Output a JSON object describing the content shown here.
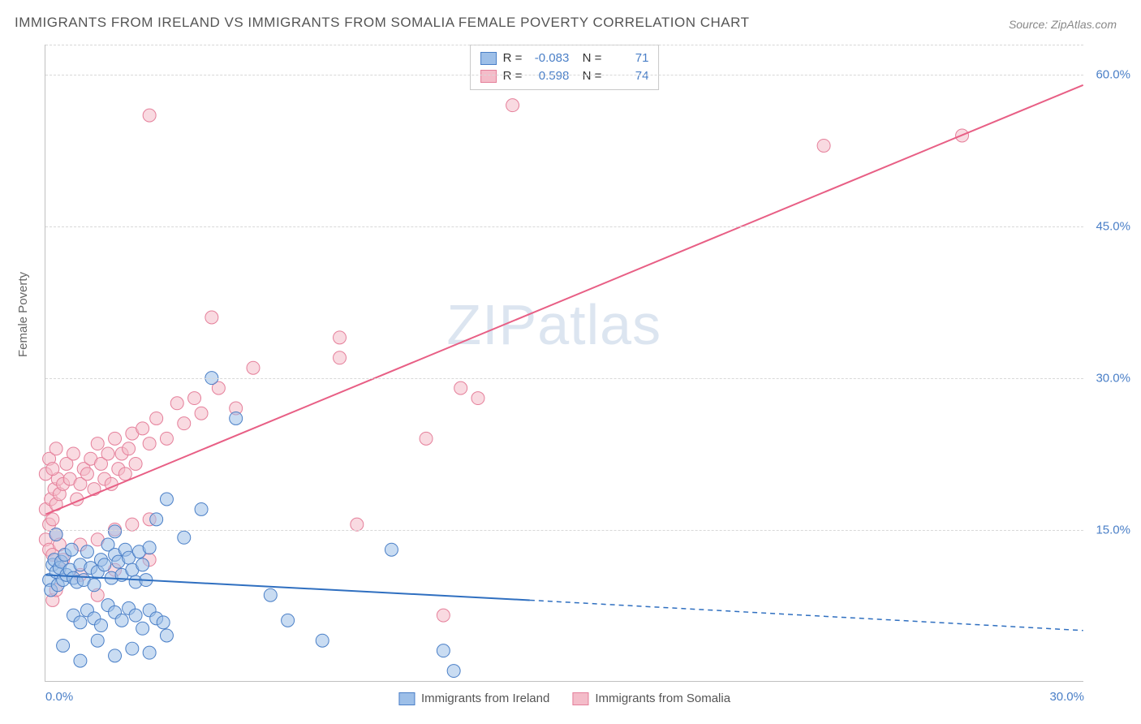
{
  "title": "IMMIGRANTS FROM IRELAND VS IMMIGRANTS FROM SOMALIA FEMALE POVERTY CORRELATION CHART",
  "source": "Source: ZipAtlas.com",
  "y_axis_label": "Female Poverty",
  "watermark": {
    "part1": "ZIP",
    "part2": "atlas"
  },
  "chart": {
    "type": "scatter-with-regression",
    "background_color": "#ffffff",
    "grid_color": "#d8d8d8",
    "axis_color": "#c0c0c0",
    "text_color": "#666666",
    "value_color": "#4a7fc7",
    "xlim": [
      0,
      30
    ],
    "ylim": [
      0,
      63
    ],
    "y_ticks": [
      15,
      30,
      45,
      60
    ],
    "y_tick_labels": [
      "15.0%",
      "30.0%",
      "45.0%",
      "60.0%"
    ],
    "x_ticks": [
      0,
      30
    ],
    "x_tick_labels": [
      "0.0%",
      "30.0%"
    ],
    "marker_radius": 8,
    "marker_opacity": 0.55,
    "line_width": 2
  },
  "series": [
    {
      "name": "Immigrants from Ireland",
      "fill_color": "#9dbfe8",
      "stroke_color": "#4a7fc7",
      "line_color": "#2f6fc0",
      "R": "-0.083",
      "N": "71",
      "regression": {
        "x1": 0,
        "y1": 10.5,
        "x2": 14,
        "y2": 8.0,
        "extend_x2": 30,
        "extend_y2": 5.0
      },
      "points": [
        [
          0.1,
          10.0
        ],
        [
          0.2,
          11.5
        ],
        [
          0.15,
          9.0
        ],
        [
          0.3,
          10.8
        ],
        [
          0.25,
          12.0
        ],
        [
          0.4,
          11.2
        ],
        [
          0.35,
          9.5
        ],
        [
          0.5,
          10.0
        ],
        [
          0.45,
          11.8
        ],
        [
          0.6,
          10.5
        ],
        [
          0.55,
          12.5
        ],
        [
          0.7,
          11.0
        ],
        [
          0.8,
          10.2
        ],
        [
          0.75,
          13.0
        ],
        [
          0.9,
          9.8
        ],
        [
          1.0,
          11.5
        ],
        [
          1.1,
          10.0
        ],
        [
          1.2,
          12.8
        ],
        [
          1.3,
          11.2
        ],
        [
          1.4,
          9.5
        ],
        [
          1.5,
          10.8
        ],
        [
          1.6,
          12.0
        ],
        [
          1.7,
          11.5
        ],
        [
          1.8,
          13.5
        ],
        [
          1.9,
          10.2
        ],
        [
          2.0,
          12.5
        ],
        [
          2.1,
          11.8
        ],
        [
          2.2,
          10.5
        ],
        [
          2.3,
          13.0
        ],
        [
          2.4,
          12.2
        ],
        [
          2.5,
          11.0
        ],
        [
          2.6,
          9.8
        ],
        [
          2.7,
          12.8
        ],
        [
          2.8,
          11.5
        ],
        [
          2.9,
          10.0
        ],
        [
          3.0,
          13.2
        ],
        [
          0.8,
          6.5
        ],
        [
          1.0,
          5.8
        ],
        [
          1.2,
          7.0
        ],
        [
          1.4,
          6.2
        ],
        [
          1.6,
          5.5
        ],
        [
          1.8,
          7.5
        ],
        [
          2.0,
          6.8
        ],
        [
          2.2,
          6.0
        ],
        [
          2.4,
          7.2
        ],
        [
          2.6,
          6.5
        ],
        [
          2.8,
          5.2
        ],
        [
          3.0,
          7.0
        ],
        [
          3.2,
          6.2
        ],
        [
          3.4,
          5.8
        ],
        [
          0.5,
          3.5
        ],
        [
          1.5,
          4.0
        ],
        [
          2.5,
          3.2
        ],
        [
          3.5,
          4.5
        ],
        [
          1.0,
          2.0
        ],
        [
          2.0,
          2.5
        ],
        [
          3.0,
          2.8
        ],
        [
          0.3,
          14.5
        ],
        [
          3.2,
          16.0
        ],
        [
          4.0,
          14.2
        ],
        [
          4.5,
          17.0
        ],
        [
          3.5,
          18.0
        ],
        [
          2.0,
          14.8
        ],
        [
          4.8,
          30.0
        ],
        [
          5.5,
          26.0
        ],
        [
          6.5,
          8.5
        ],
        [
          7.0,
          6.0
        ],
        [
          8.0,
          4.0
        ],
        [
          10.0,
          13.0
        ],
        [
          11.5,
          3.0
        ],
        [
          11.8,
          1.0
        ]
      ]
    },
    {
      "name": "Immigrants from Somalia",
      "fill_color": "#f4bcc9",
      "stroke_color": "#e57f9a",
      "line_color": "#e85f85",
      "R": "0.598",
      "N": "74",
      "regression": {
        "x1": 0,
        "y1": 16.5,
        "x2": 30,
        "y2": 59.0
      },
      "points": [
        [
          0.0,
          17.0
        ],
        [
          0.1,
          15.5
        ],
        [
          0.15,
          18.0
        ],
        [
          0.2,
          16.0
        ],
        [
          0.25,
          19.0
        ],
        [
          0.3,
          17.5
        ],
        [
          0.35,
          20.0
        ],
        [
          0.4,
          18.5
        ],
        [
          0.0,
          14.0
        ],
        [
          0.1,
          13.0
        ],
        [
          0.2,
          12.5
        ],
        [
          0.3,
          14.5
        ],
        [
          0.4,
          13.5
        ],
        [
          0.0,
          20.5
        ],
        [
          0.1,
          22.0
        ],
        [
          0.2,
          21.0
        ],
        [
          0.3,
          23.0
        ],
        [
          0.5,
          19.5
        ],
        [
          0.6,
          21.5
        ],
        [
          0.7,
          20.0
        ],
        [
          0.8,
          22.5
        ],
        [
          0.9,
          18.0
        ],
        [
          1.0,
          19.5
        ],
        [
          1.1,
          21.0
        ],
        [
          1.2,
          20.5
        ],
        [
          1.3,
          22.0
        ],
        [
          1.4,
          19.0
        ],
        [
          1.5,
          23.5
        ],
        [
          1.6,
          21.5
        ],
        [
          1.7,
          20.0
        ],
        [
          1.8,
          22.5
        ],
        [
          1.9,
          19.5
        ],
        [
          2.0,
          24.0
        ],
        [
          2.1,
          21.0
        ],
        [
          2.2,
          22.5
        ],
        [
          2.3,
          20.5
        ],
        [
          2.4,
          23.0
        ],
        [
          2.5,
          24.5
        ],
        [
          2.6,
          21.5
        ],
        [
          2.8,
          25.0
        ],
        [
          3.0,
          23.5
        ],
        [
          3.2,
          26.0
        ],
        [
          3.5,
          24.0
        ],
        [
          3.8,
          27.5
        ],
        [
          4.0,
          25.5
        ],
        [
          4.3,
          28.0
        ],
        [
          4.5,
          26.5
        ],
        [
          5.0,
          29.0
        ],
        [
          0.5,
          12.0
        ],
        [
          1.0,
          13.5
        ],
        [
          1.5,
          14.0
        ],
        [
          2.0,
          15.0
        ],
        [
          2.5,
          15.5
        ],
        [
          3.0,
          16.0
        ],
        [
          1.0,
          10.5
        ],
        [
          2.0,
          11.0
        ],
        [
          3.0,
          12.0
        ],
        [
          1.5,
          8.5
        ],
        [
          0.2,
          8.0
        ],
        [
          0.3,
          9.0
        ],
        [
          3.0,
          56.0
        ],
        [
          4.8,
          36.0
        ],
        [
          5.5,
          27.0
        ],
        [
          6.0,
          31.0
        ],
        [
          8.5,
          32.0
        ],
        [
          8.5,
          34.0
        ],
        [
          9.0,
          15.5
        ],
        [
          11.0,
          24.0
        ],
        [
          11.5,
          6.5
        ],
        [
          12.0,
          29.0
        ],
        [
          12.5,
          28.0
        ],
        [
          13.5,
          57.0
        ],
        [
          22.5,
          53.0
        ],
        [
          26.5,
          54.0
        ]
      ]
    }
  ],
  "legend_bottom": [
    {
      "label": "Immigrants from Ireland",
      "fill": "#9dbfe8",
      "stroke": "#4a7fc7"
    },
    {
      "label": "Immigrants from Somalia",
      "fill": "#f4bcc9",
      "stroke": "#e57f9a"
    }
  ]
}
